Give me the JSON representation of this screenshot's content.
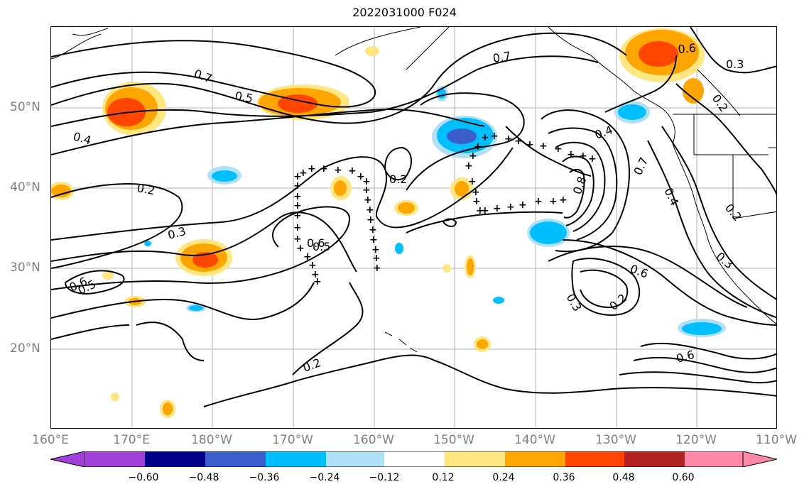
{
  "title": "2022031000 F024",
  "x_ticks": [
    "160°E",
    "170°E",
    "180°W",
    "170°W",
    "160°W",
    "150°W",
    "140°W",
    "130°W",
    "120°W",
    "110°W"
  ],
  "y_ticks": [
    "50°N",
    "40°N",
    "30°N",
    "20°N"
  ],
  "colorbar": {
    "ticks": [
      "−0.60",
      "−0.48",
      "−0.36",
      "−0.24",
      "−0.12",
      "0.12",
      "0.24",
      "0.36",
      "0.48",
      "0.60"
    ],
    "colors": [
      "#a040d8",
      "#00008b",
      "#3a5fcd",
      "#00bfff",
      "#b0e0f8",
      "#ffffff",
      "#ffe680",
      "#ffa500",
      "#ff4500",
      "#b22222",
      "#ff88aa"
    ]
  },
  "contour_labels": [
    "0.7",
    "0.5",
    "0.4",
    "0.7",
    "0.6",
    "0.3",
    "0.2",
    "0.2",
    "0.3",
    "0.6",
    "0.5",
    "0.2",
    "0.4",
    "0.8",
    "0.7",
    "0.4",
    "0.2",
    "0.3",
    "0.6",
    "0.3",
    "0.2",
    "0.6",
    "0.2",
    "0.6",
    "0.5"
  ],
  "colors": {
    "map_frame": "#000000",
    "tick_text": "#808080",
    "grid": "#b0b0b0"
  }
}
